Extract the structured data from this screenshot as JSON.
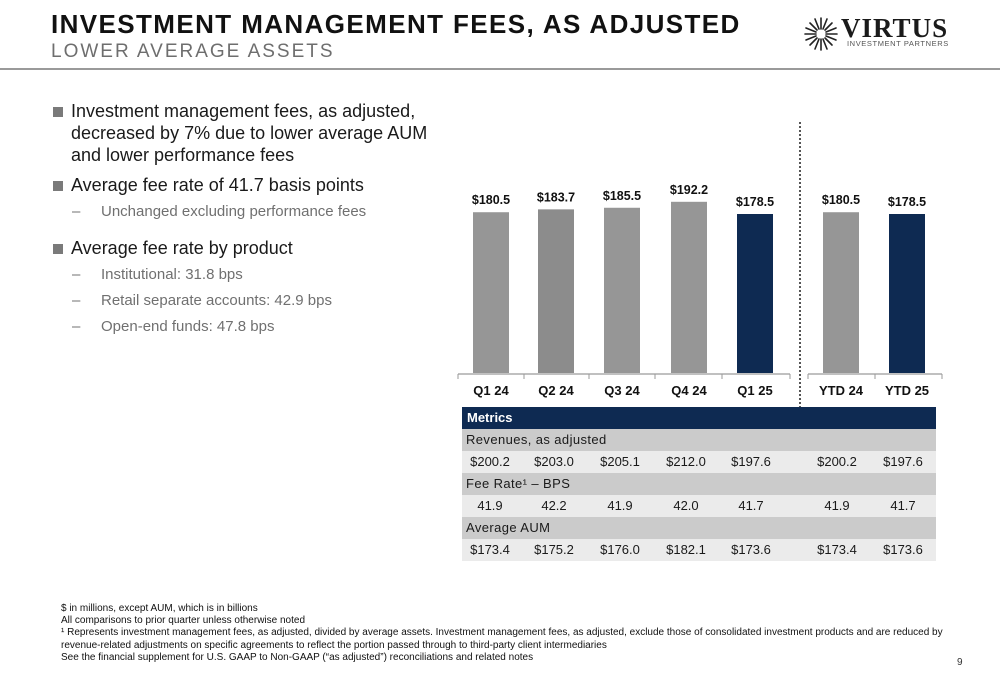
{
  "header": {
    "title": "INVESTMENT MANAGEMENT FEES, AS ADJUSTED",
    "subtitle": "LOWER AVERAGE ASSETS"
  },
  "logo": {
    "word": "VIRTUS",
    "tagline": "INVESTMENT PARTNERS"
  },
  "bullets": [
    {
      "level": 1,
      "text": "Investment management fees, as adjusted, decreased by 7% due to lower average AUM and lower performance fees"
    },
    {
      "level": 1,
      "text": "Average fee rate of 41.7 basis points"
    },
    {
      "level": 2,
      "text": "Unchanged excluding performance fees"
    },
    {
      "level": 1,
      "text": "Average fee rate by product"
    },
    {
      "level": 2,
      "text": "Institutional: 31.8 bps"
    },
    {
      "level": 2,
      "text": "Retail separate accounts: 42.9 bps"
    },
    {
      "level": 2,
      "text": "Open-end funds: 47.8 bps"
    }
  ],
  "chart_data": {
    "type": "bar",
    "title": "",
    "xlabel": "",
    "ylabel": "",
    "categories": [
      "Q1 24",
      "Q2 24",
      "Q3 24",
      "Q4 24",
      "Q1 25",
      "YTD 24",
      "YTD 25"
    ],
    "values": [
      180.5,
      183.7,
      185.5,
      192.2,
      178.5,
      180.5,
      178.5
    ],
    "value_labels": [
      "$180.5",
      "$183.7",
      "$185.5",
      "$192.2",
      "$178.5",
      "$180.5",
      "$178.5"
    ],
    "highlighted": [
      false,
      false,
      false,
      false,
      true,
      false,
      true
    ],
    "colors": {
      "default": "#969696",
      "q2": "#8c8c8c",
      "highlight": "#0e2a52"
    },
    "grid": false,
    "legend": "none"
  },
  "metrics": {
    "header": "Metrics",
    "rows": [
      {
        "label": "Revenues, as adjusted",
        "values": [
          "$200.2",
          "$203.0",
          "$205.1",
          "$212.0",
          "$197.6",
          "$200.2",
          "$197.6"
        ]
      },
      {
        "label": "Fee Rate¹ – BPS",
        "values": [
          "41.9",
          "42.2",
          "41.9",
          "42.0",
          "41.7",
          "41.9",
          "41.7"
        ]
      },
      {
        "label": "Average AUM",
        "values": [
          "$173.4",
          "$175.2",
          "$176.0",
          "$182.1",
          "$173.6",
          "$173.4",
          "$173.6"
        ]
      }
    ]
  },
  "footnotes": [
    "$ in millions, except AUM, which is in billions",
    "All comparisons to prior quarter unless otherwise noted",
    "¹ Represents investment management fees, as adjusted, divided by average assets. Investment management fees, as adjusted, exclude those of consolidated investment products and are reduced by revenue-related adjustments on specific agreements to reflect the portion passed through to third-party client intermediaries",
    "See the financial supplement for U.S. GAAP to Non-GAAP (“as adjusted”) reconciliations and related notes"
  ],
  "page_number": "9"
}
